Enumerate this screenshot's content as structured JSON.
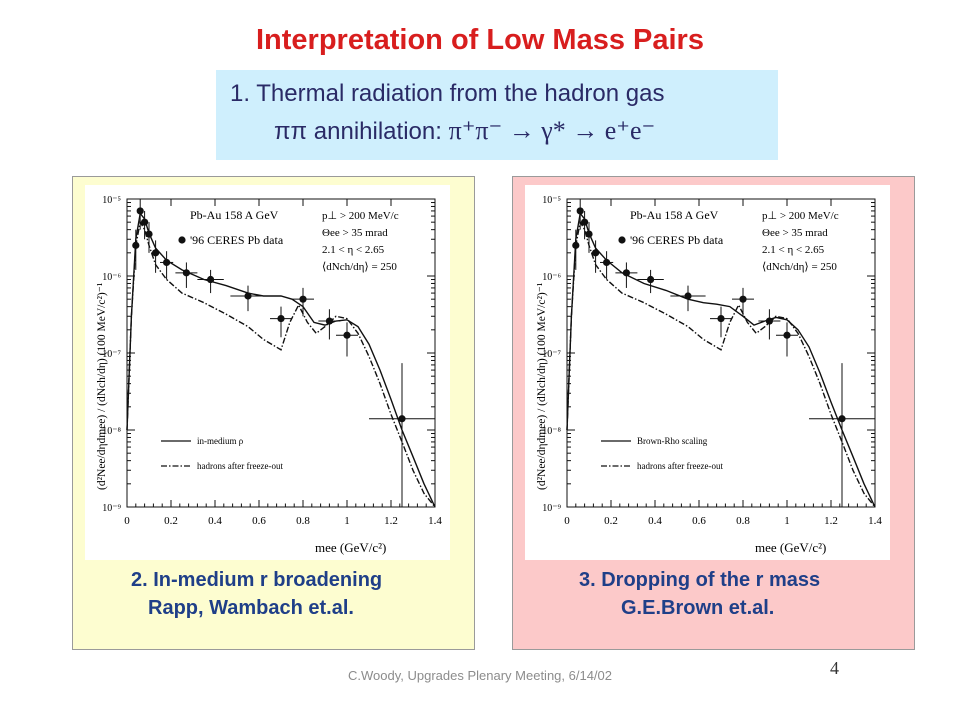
{
  "slide": {
    "title": "Interpretation of Low Mass Pairs",
    "subtitle_line1": "1. Thermal radiation from the hadron gas",
    "subtitle_line2": {
      "text": "ππ annihilation:",
      "reaction": "π⁺π⁻ → γ* → e⁺e⁻"
    },
    "footer": "C.Woody, Upgrades Plenary Meeting, 6/14/02",
    "page_number": "4"
  },
  "panels": [
    {
      "caption_line1": "2. In-medium r broadening",
      "caption_line2": "Rapp, Wambach et.al.",
      "background": "#fdfdd0",
      "legend": [
        "in-medium ρ",
        "hadrons after freeze-out"
      ],
      "experiment": "Pb-Au 158 A GeV",
      "data_label": "'96 CERES Pb data",
      "cuts": [
        "p⊥ > 200 MeV/c",
        "Θee > 35 mrad",
        "2.1 < η < 2.65",
        "⟨dNch/dη⟩ = 250"
      ]
    },
    {
      "caption_line1": "3. Dropping of the r mass",
      "caption_line2": "G.E.Brown et.al.",
      "background": "#fcc9c9",
      "legend": [
        "Brown-Rho scaling",
        "hadrons after freeze-out"
      ],
      "experiment": "Pb-Au 158 A GeV",
      "data_label": "'96 CERES Pb data",
      "cuts": [
        "p⊥ > 200 MeV/c",
        "Θee > 35 mrad",
        "2.1 < η < 2.65",
        "⟨dNch/dη⟩ = 250"
      ]
    }
  ],
  "chart_data": [
    {
      "type": "scatter",
      "scale": "log-y",
      "xlabel": "mee (GeV/c²)",
      "ylabel": "(d²Nee/dηdmee) / (dNch/dη) (100 MeV/c²)⁻¹",
      "xlim": [
        0,
        1.4
      ],
      "ylim": [
        1e-09,
        1e-05
      ],
      "xticks": [
        "0",
        "0.2",
        "0.4",
        "0.6",
        "0.8",
        "1",
        "1.2",
        "1.4"
      ],
      "yticks": [
        "10⁻⁵",
        "10⁻⁶",
        "10⁻⁷",
        "10⁻⁸",
        "10⁻⁹"
      ],
      "series": [
        {
          "name": "'96 CERES Pb data",
          "style": "points",
          "x": [
            0.04,
            0.06,
            0.08,
            0.1,
            0.13,
            0.18,
            0.27,
            0.38,
            0.55,
            0.7,
            0.8,
            0.92,
            1.0,
            1.25
          ],
          "y": [
            2.5e-06,
            7e-06,
            5e-06,
            3.5e-06,
            2e-06,
            1.5e-06,
            1.1e-06,
            9e-07,
            5.5e-07,
            2.8e-07,
            5e-07,
            2.6e-07,
            1.7e-07,
            1.4e-08
          ],
          "yerr_lo": [
            1.3e-06,
            3e-06,
            2e-06,
            1.5e-06,
            9e-07,
            6e-07,
            4e-07,
            3e-07,
            2e-07,
            1.2e-07,
            2e-07,
            1.1e-07,
            8e-08,
            1.3e-08
          ],
          "yerr_hi": [
            1.5e-06,
            3e-06,
            2e-06,
            1.5e-06,
            9e-07,
            6e-07,
            4e-07,
            3e-07,
            2e-07,
            1.2e-07,
            2e-07,
            1.1e-07,
            8e-08,
            6e-08
          ],
          "xerr": [
            0.01,
            0.01,
            0.01,
            0.015,
            0.02,
            0.03,
            0.05,
            0.06,
            0.08,
            0.05,
            0.05,
            0.05,
            0.05,
            0.15
          ]
        },
        {
          "name": "in-medium ρ",
          "style": "solid",
          "x": [
            0.0,
            0.02,
            0.04,
            0.06,
            0.08,
            0.1,
            0.13,
            0.18,
            0.25,
            0.35,
            0.45,
            0.55,
            0.62,
            0.7,
            0.75,
            0.8,
            0.85,
            0.9,
            0.95,
            1.0,
            1.05,
            1.1,
            1.15,
            1.2,
            1.25,
            1.3,
            1.35,
            1.4
          ],
          "y": [
            1e-08,
            3e-07,
            3e-06,
            6.5e-06,
            5.5e-06,
            3.6e-06,
            2.3e-06,
            1.6e-06,
            1.2e-06,
            9e-07,
            7.5e-07,
            6e-07,
            5.5e-07,
            5.5e-07,
            5e-07,
            4e-07,
            2.5e-07,
            2.3e-07,
            2.6e-07,
            2.7e-07,
            2.2e-07,
            1.3e-07,
            6e-08,
            2.5e-08,
            1e-08,
            4.5e-09,
            2e-09,
            1e-09
          ]
        },
        {
          "name": "hadrons after freeze-out",
          "style": "dash-dot",
          "x": [
            0.0,
            0.02,
            0.04,
            0.06,
            0.08,
            0.1,
            0.13,
            0.18,
            0.25,
            0.35,
            0.45,
            0.55,
            0.62,
            0.7,
            0.74,
            0.78,
            0.82,
            0.86,
            0.9,
            0.95,
            1.0,
            1.05,
            1.1,
            1.15,
            1.2,
            1.25,
            1.3,
            1.35,
            1.4
          ],
          "y": [
            1e-08,
            3e-07,
            2.5e-06,
            5e-06,
            4e-06,
            2.5e-06,
            1.4e-06,
            9e-07,
            6e-07,
            4.5e-07,
            3.2e-07,
            2.2e-07,
            1.5e-07,
            1.1e-07,
            2.5e-07,
            4.2e-07,
            2.5e-07,
            1.8e-07,
            2.2e-07,
            3e-07,
            2.8e-07,
            1.8e-07,
            9e-08,
            4e-08,
            1.6e-08,
            7e-09,
            3e-09,
            1.5e-09,
            1e-09
          ]
        }
      ]
    },
    {
      "type": "scatter",
      "scale": "log-y",
      "xlabel": "mee (GeV/c²)",
      "ylabel": "(d²Nee/dηdmee) / (dNch/dη) (100 MeV/c²)⁻¹",
      "xlim": [
        0,
        1.4
      ],
      "ylim": [
        1e-09,
        1e-05
      ],
      "xticks": [
        "0",
        "0.2",
        "0.4",
        "0.6",
        "0.8",
        "1",
        "1.2",
        "1.4"
      ],
      "yticks": [
        "10⁻⁵",
        "10⁻⁶",
        "10⁻⁷",
        "10⁻⁸",
        "10⁻⁹"
      ],
      "series": [
        {
          "name": "'96 CERES Pb data",
          "style": "points",
          "x": [
            0.04,
            0.06,
            0.08,
            0.1,
            0.13,
            0.18,
            0.27,
            0.38,
            0.55,
            0.7,
            0.8,
            0.92,
            1.0,
            1.25
          ],
          "y": [
            2.5e-06,
            7e-06,
            5e-06,
            3.5e-06,
            2e-06,
            1.5e-06,
            1.1e-06,
            9e-07,
            5.5e-07,
            2.8e-07,
            5e-07,
            2.6e-07,
            1.7e-07,
            1.4e-08
          ],
          "yerr_lo": [
            1.3e-06,
            3e-06,
            2e-06,
            1.5e-06,
            9e-07,
            6e-07,
            4e-07,
            3e-07,
            2e-07,
            1.2e-07,
            2e-07,
            1.1e-07,
            8e-08,
            1.3e-08
          ],
          "yerr_hi": [
            1.5e-06,
            3e-06,
            2e-06,
            1.5e-06,
            9e-07,
            6e-07,
            4e-07,
            3e-07,
            2e-07,
            1.2e-07,
            2e-07,
            1.1e-07,
            8e-08,
            6e-08
          ],
          "xerr": [
            0.01,
            0.01,
            0.01,
            0.015,
            0.02,
            0.03,
            0.05,
            0.06,
            0.08,
            0.05,
            0.05,
            0.05,
            0.05,
            0.15
          ]
        },
        {
          "name": "Brown-Rho scaling",
          "style": "solid",
          "x": [
            0.0,
            0.02,
            0.04,
            0.06,
            0.08,
            0.1,
            0.13,
            0.18,
            0.25,
            0.35,
            0.45,
            0.55,
            0.62,
            0.68,
            0.74,
            0.8,
            0.85,
            0.9,
            0.95,
            1.0,
            1.05,
            1.1,
            1.15,
            1.2,
            1.25,
            1.3,
            1.35,
            1.4
          ],
          "y": [
            1e-08,
            3e-07,
            3e-06,
            6.5e-06,
            5.5e-06,
            3.6e-06,
            2.3e-06,
            1.6e-06,
            1.1e-06,
            8e-07,
            6.5e-07,
            5e-07,
            4.5e-07,
            4.3e-07,
            4e-07,
            3e-07,
            2.3e-07,
            2.6e-07,
            2.9e-07,
            2.7e-07,
            2e-07,
            1.2e-07,
            5.5e-08,
            2.3e-08,
            1e-08,
            4.5e-09,
            2e-09,
            1e-09
          ]
        },
        {
          "name": "hadrons after freeze-out",
          "style": "dash-dot",
          "x": [
            0.0,
            0.02,
            0.04,
            0.06,
            0.08,
            0.1,
            0.13,
            0.18,
            0.25,
            0.35,
            0.45,
            0.55,
            0.62,
            0.7,
            0.74,
            0.78,
            0.82,
            0.86,
            0.9,
            0.95,
            1.0,
            1.05,
            1.1,
            1.15,
            1.2,
            1.25,
            1.3,
            1.35,
            1.4
          ],
          "y": [
            1e-08,
            3e-07,
            2.5e-06,
            5e-06,
            4e-06,
            2.5e-06,
            1.4e-06,
            9e-07,
            6e-07,
            4.5e-07,
            3.2e-07,
            2.2e-07,
            1.5e-07,
            1.1e-07,
            2.5e-07,
            4.2e-07,
            2.5e-07,
            1.8e-07,
            2.2e-07,
            3e-07,
            2.8e-07,
            1.8e-07,
            9e-08,
            4e-08,
            1.6e-08,
            7e-09,
            3e-09,
            1.5e-09,
            1e-09
          ]
        }
      ]
    }
  ]
}
